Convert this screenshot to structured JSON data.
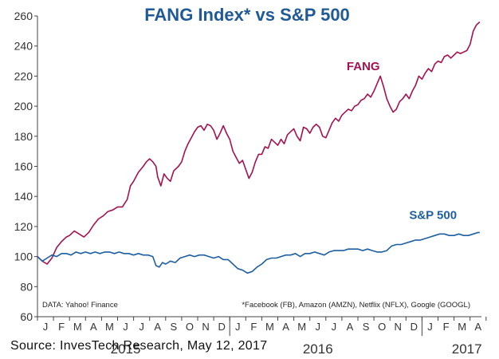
{
  "chart_data": {
    "type": "line",
    "title": "FANG Index* vs S&P 500",
    "ylim": [
      60,
      260
    ],
    "yticks": [
      60,
      80,
      100,
      120,
      140,
      160,
      180,
      200,
      220,
      240,
      260
    ],
    "month_ticks": [
      "J",
      "F",
      "M",
      "A",
      "M",
      "J",
      "J",
      "A",
      "S",
      "O",
      "N",
      "D",
      "J",
      "F",
      "M",
      "A",
      "M",
      "J",
      "J",
      "A",
      "S",
      "O",
      "N",
      "D",
      "J",
      "F",
      "M",
      "A"
    ],
    "year_labels": [
      {
        "label": "2015",
        "month": 5.5
      },
      {
        "label": "2016",
        "month": 17.5
      },
      {
        "label": "2017",
        "month": 26.8
      }
    ],
    "grid": false,
    "series": [
      {
        "name": "FANG",
        "color": "#a3124f",
        "label_at": {
          "month": 19.3,
          "value": 224
        },
        "points": [
          [
            0,
            100
          ],
          [
            0.3,
            97
          ],
          [
            0.6,
            95
          ],
          [
            0.9,
            99
          ],
          [
            1.2,
            106
          ],
          [
            1.5,
            110
          ],
          [
            1.8,
            113
          ],
          [
            2.0,
            114
          ],
          [
            2.3,
            117
          ],
          [
            2.6,
            115
          ],
          [
            2.9,
            113
          ],
          [
            3.2,
            116
          ],
          [
            3.5,
            121
          ],
          [
            3.8,
            125
          ],
          [
            4.1,
            127
          ],
          [
            4.4,
            130
          ],
          [
            4.7,
            131
          ],
          [
            5.0,
            133
          ],
          [
            5.3,
            133
          ],
          [
            5.6,
            138
          ],
          [
            5.8,
            147
          ],
          [
            6.0,
            150
          ],
          [
            6.3,
            156
          ],
          [
            6.6,
            160
          ],
          [
            6.8,
            163
          ],
          [
            7.0,
            165
          ],
          [
            7.2,
            163
          ],
          [
            7.4,
            160
          ],
          [
            7.5,
            153
          ],
          [
            7.7,
            147
          ],
          [
            7.9,
            155
          ],
          [
            8.1,
            152
          ],
          [
            8.3,
            150
          ],
          [
            8.5,
            157
          ],
          [
            8.8,
            160
          ],
          [
            9.0,
            163
          ],
          [
            9.2,
            170
          ],
          [
            9.4,
            175
          ],
          [
            9.6,
            179
          ],
          [
            9.8,
            183
          ],
          [
            10.0,
            186
          ],
          [
            10.2,
            187
          ],
          [
            10.4,
            184
          ],
          [
            10.6,
            188
          ],
          [
            10.8,
            187
          ],
          [
            11.0,
            184
          ],
          [
            11.2,
            178
          ],
          [
            11.4,
            182
          ],
          [
            11.6,
            187
          ],
          [
            11.8,
            182
          ],
          [
            12.0,
            178
          ],
          [
            12.2,
            170
          ],
          [
            12.4,
            166
          ],
          [
            12.6,
            162
          ],
          [
            12.8,
            164
          ],
          [
            13.0,
            158
          ],
          [
            13.2,
            152
          ],
          [
            13.4,
            156
          ],
          [
            13.6,
            163
          ],
          [
            13.8,
            168
          ],
          [
            14.0,
            168
          ],
          [
            14.2,
            173
          ],
          [
            14.4,
            172
          ],
          [
            14.6,
            178
          ],
          [
            14.8,
            176
          ],
          [
            15.0,
            174
          ],
          [
            15.2,
            178
          ],
          [
            15.4,
            175
          ],
          [
            15.6,
            181
          ],
          [
            15.8,
            183
          ],
          [
            16.0,
            185
          ],
          [
            16.2,
            180
          ],
          [
            16.4,
            177
          ],
          [
            16.6,
            186
          ],
          [
            16.8,
            185
          ],
          [
            17.0,
            182
          ],
          [
            17.2,
            186
          ],
          [
            17.4,
            188
          ],
          [
            17.6,
            186
          ],
          [
            17.8,
            180
          ],
          [
            18.0,
            179
          ],
          [
            18.2,
            184
          ],
          [
            18.4,
            189
          ],
          [
            18.6,
            192
          ],
          [
            18.8,
            190
          ],
          [
            19.0,
            194
          ],
          [
            19.2,
            196
          ],
          [
            19.4,
            198
          ],
          [
            19.6,
            197
          ],
          [
            19.8,
            200
          ],
          [
            20.0,
            201
          ],
          [
            20.2,
            204
          ],
          [
            20.4,
            205
          ],
          [
            20.6,
            208
          ],
          [
            20.8,
            206
          ],
          [
            21.0,
            210
          ],
          [
            21.2,
            215
          ],
          [
            21.4,
            220
          ],
          [
            21.6,
            213
          ],
          [
            21.8,
            205
          ],
          [
            22.0,
            200
          ],
          [
            22.2,
            196
          ],
          [
            22.4,
            198
          ],
          [
            22.6,
            203
          ],
          [
            22.8,
            205
          ],
          [
            23.0,
            208
          ],
          [
            23.2,
            205
          ],
          [
            23.4,
            210
          ],
          [
            23.6,
            214
          ],
          [
            23.8,
            220
          ],
          [
            24.0,
            218
          ],
          [
            24.2,
            222
          ],
          [
            24.4,
            225
          ],
          [
            24.6,
            223
          ],
          [
            24.8,
            228
          ],
          [
            25.0,
            230
          ],
          [
            25.2,
            229
          ],
          [
            25.4,
            233
          ],
          [
            25.6,
            234
          ],
          [
            25.8,
            232
          ],
          [
            26.0,
            234
          ],
          [
            26.2,
            236
          ],
          [
            26.4,
            235
          ],
          [
            26.6,
            236
          ],
          [
            26.8,
            237
          ],
          [
            27.0,
            241
          ],
          [
            27.2,
            250
          ],
          [
            27.4,
            254
          ],
          [
            27.6,
            256
          ]
        ]
      },
      {
        "name": "S&P 500",
        "color": "#1d5fa0",
        "label_at": {
          "month": 23.2,
          "value": 125
        },
        "points": [
          [
            0,
            100
          ],
          [
            0.3,
            97
          ],
          [
            0.6,
            99
          ],
          [
            0.9,
            101
          ],
          [
            1.2,
            100
          ],
          [
            1.5,
            102
          ],
          [
            1.8,
            102
          ],
          [
            2.1,
            101
          ],
          [
            2.4,
            103
          ],
          [
            2.7,
            102
          ],
          [
            3.0,
            103
          ],
          [
            3.3,
            102
          ],
          [
            3.6,
            103
          ],
          [
            3.9,
            102
          ],
          [
            4.2,
            103
          ],
          [
            4.5,
            103
          ],
          [
            4.8,
            102
          ],
          [
            5.1,
            103
          ],
          [
            5.4,
            102
          ],
          [
            5.7,
            102
          ],
          [
            6.0,
            101
          ],
          [
            6.3,
            102
          ],
          [
            6.6,
            101
          ],
          [
            6.9,
            101
          ],
          [
            7.2,
            100
          ],
          [
            7.4,
            94
          ],
          [
            7.6,
            93
          ],
          [
            7.8,
            96
          ],
          [
            8.0,
            95
          ],
          [
            8.3,
            97
          ],
          [
            8.6,
            96
          ],
          [
            8.9,
            99
          ],
          [
            9.2,
            100
          ],
          [
            9.5,
            101
          ],
          [
            9.8,
            100
          ],
          [
            10.1,
            101
          ],
          [
            10.4,
            101
          ],
          [
            10.7,
            100
          ],
          [
            11.0,
            99
          ],
          [
            11.3,
            100
          ],
          [
            11.6,
            98
          ],
          [
            11.9,
            98
          ],
          [
            12.2,
            95
          ],
          [
            12.5,
            92
          ],
          [
            12.8,
            91
          ],
          [
            13.1,
            89
          ],
          [
            13.4,
            90
          ],
          [
            13.7,
            93
          ],
          [
            14.0,
            95
          ],
          [
            14.3,
            98
          ],
          [
            14.6,
            99
          ],
          [
            14.9,
            99
          ],
          [
            15.2,
            100
          ],
          [
            15.5,
            101
          ],
          [
            15.8,
            101
          ],
          [
            16.1,
            102
          ],
          [
            16.4,
            100
          ],
          [
            16.7,
            102
          ],
          [
            17.0,
            102
          ],
          [
            17.3,
            103
          ],
          [
            17.6,
            102
          ],
          [
            17.9,
            101
          ],
          [
            18.2,
            103
          ],
          [
            18.5,
            104
          ],
          [
            18.8,
            104
          ],
          [
            19.1,
            104
          ],
          [
            19.4,
            105
          ],
          [
            19.7,
            105
          ],
          [
            20.0,
            105
          ],
          [
            20.3,
            104
          ],
          [
            20.6,
            105
          ],
          [
            20.9,
            104
          ],
          [
            21.2,
            103
          ],
          [
            21.5,
            103
          ],
          [
            21.8,
            104
          ],
          [
            22.1,
            107
          ],
          [
            22.4,
            108
          ],
          [
            22.7,
            108
          ],
          [
            23.0,
            109
          ],
          [
            23.3,
            110
          ],
          [
            23.6,
            111
          ],
          [
            23.9,
            111
          ],
          [
            24.2,
            112
          ],
          [
            24.5,
            113
          ],
          [
            24.8,
            114
          ],
          [
            25.1,
            115
          ],
          [
            25.4,
            115
          ],
          [
            25.7,
            114
          ],
          [
            26.0,
            114
          ],
          [
            26.3,
            115
          ],
          [
            26.6,
            114
          ],
          [
            26.9,
            114
          ],
          [
            27.2,
            115
          ],
          [
            27.5,
            116
          ],
          [
            27.6,
            116
          ]
        ]
      }
    ],
    "data_note": "DATA: Yahoo! Finance",
    "footnote": "*Facebook (FB), Amazon (AMZN), Netflix (NFLX), Google (GOOGL)"
  },
  "source_caption": "Source: InvesTech Research, May 12, 2017"
}
